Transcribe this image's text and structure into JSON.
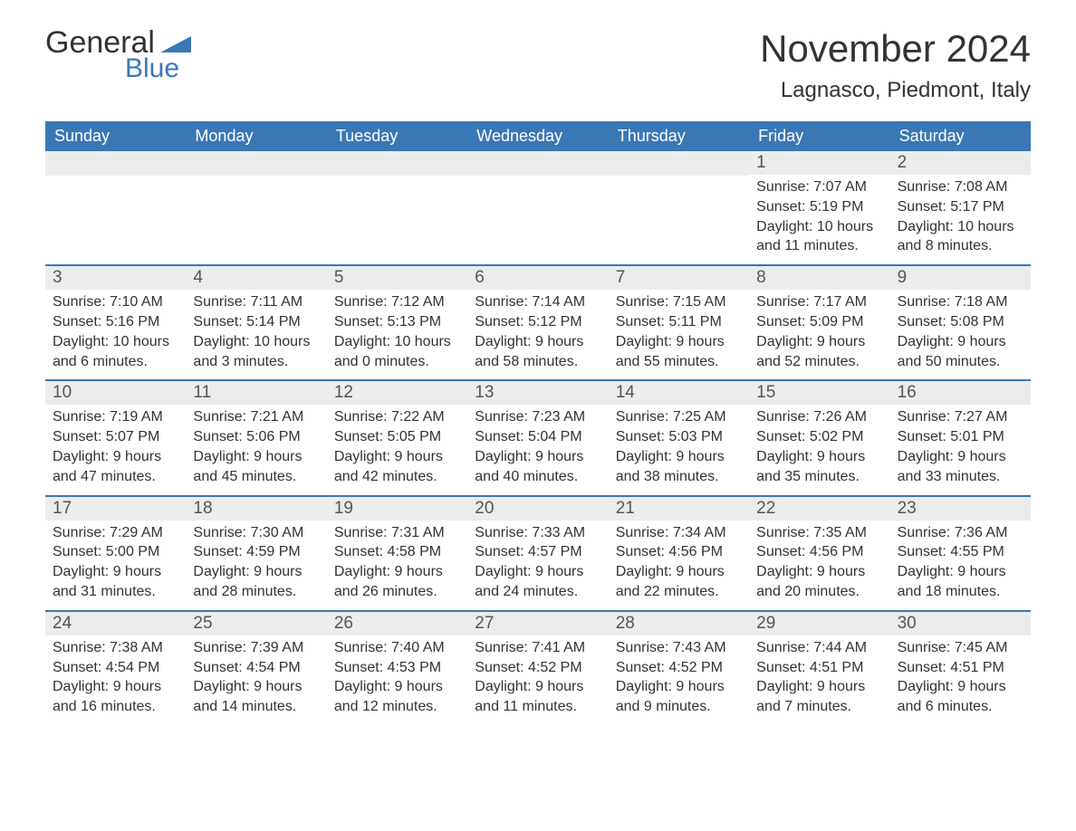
{
  "logo": {
    "text1": "General",
    "text2": "Blue",
    "tri_color": "#3a78b5"
  },
  "title": "November 2024",
  "location": "Lagnasco, Piedmont, Italy",
  "colors": {
    "header_bg": "#3a78b5",
    "header_text": "#ffffff",
    "daynum_bg": "#ececec",
    "border": "#3a78b5",
    "body_text": "#333333"
  },
  "fonts": {
    "title_size": 42,
    "location_size": 24,
    "dow_size": 18,
    "daynum_size": 19,
    "body_size": 16
  },
  "days_of_week": [
    "Sunday",
    "Monday",
    "Tuesday",
    "Wednesday",
    "Thursday",
    "Friday",
    "Saturday"
  ],
  "weeks": [
    [
      null,
      null,
      null,
      null,
      null,
      {
        "n": "1",
        "sunrise": "Sunrise: 7:07 AM",
        "sunset": "Sunset: 5:19 PM",
        "d1": "Daylight: 10 hours",
        "d2": "and 11 minutes."
      },
      {
        "n": "2",
        "sunrise": "Sunrise: 7:08 AM",
        "sunset": "Sunset: 5:17 PM",
        "d1": "Daylight: 10 hours",
        "d2": "and 8 minutes."
      }
    ],
    [
      {
        "n": "3",
        "sunrise": "Sunrise: 7:10 AM",
        "sunset": "Sunset: 5:16 PM",
        "d1": "Daylight: 10 hours",
        "d2": "and 6 minutes."
      },
      {
        "n": "4",
        "sunrise": "Sunrise: 7:11 AM",
        "sunset": "Sunset: 5:14 PM",
        "d1": "Daylight: 10 hours",
        "d2": "and 3 minutes."
      },
      {
        "n": "5",
        "sunrise": "Sunrise: 7:12 AM",
        "sunset": "Sunset: 5:13 PM",
        "d1": "Daylight: 10 hours",
        "d2": "and 0 minutes."
      },
      {
        "n": "6",
        "sunrise": "Sunrise: 7:14 AM",
        "sunset": "Sunset: 5:12 PM",
        "d1": "Daylight: 9 hours",
        "d2": "and 58 minutes."
      },
      {
        "n": "7",
        "sunrise": "Sunrise: 7:15 AM",
        "sunset": "Sunset: 5:11 PM",
        "d1": "Daylight: 9 hours",
        "d2": "and 55 minutes."
      },
      {
        "n": "8",
        "sunrise": "Sunrise: 7:17 AM",
        "sunset": "Sunset: 5:09 PM",
        "d1": "Daylight: 9 hours",
        "d2": "and 52 minutes."
      },
      {
        "n": "9",
        "sunrise": "Sunrise: 7:18 AM",
        "sunset": "Sunset: 5:08 PM",
        "d1": "Daylight: 9 hours",
        "d2": "and 50 minutes."
      }
    ],
    [
      {
        "n": "10",
        "sunrise": "Sunrise: 7:19 AM",
        "sunset": "Sunset: 5:07 PM",
        "d1": "Daylight: 9 hours",
        "d2": "and 47 minutes."
      },
      {
        "n": "11",
        "sunrise": "Sunrise: 7:21 AM",
        "sunset": "Sunset: 5:06 PM",
        "d1": "Daylight: 9 hours",
        "d2": "and 45 minutes."
      },
      {
        "n": "12",
        "sunrise": "Sunrise: 7:22 AM",
        "sunset": "Sunset: 5:05 PM",
        "d1": "Daylight: 9 hours",
        "d2": "and 42 minutes."
      },
      {
        "n": "13",
        "sunrise": "Sunrise: 7:23 AM",
        "sunset": "Sunset: 5:04 PM",
        "d1": "Daylight: 9 hours",
        "d2": "and 40 minutes."
      },
      {
        "n": "14",
        "sunrise": "Sunrise: 7:25 AM",
        "sunset": "Sunset: 5:03 PM",
        "d1": "Daylight: 9 hours",
        "d2": "and 38 minutes."
      },
      {
        "n": "15",
        "sunrise": "Sunrise: 7:26 AM",
        "sunset": "Sunset: 5:02 PM",
        "d1": "Daylight: 9 hours",
        "d2": "and 35 minutes."
      },
      {
        "n": "16",
        "sunrise": "Sunrise: 7:27 AM",
        "sunset": "Sunset: 5:01 PM",
        "d1": "Daylight: 9 hours",
        "d2": "and 33 minutes."
      }
    ],
    [
      {
        "n": "17",
        "sunrise": "Sunrise: 7:29 AM",
        "sunset": "Sunset: 5:00 PM",
        "d1": "Daylight: 9 hours",
        "d2": "and 31 minutes."
      },
      {
        "n": "18",
        "sunrise": "Sunrise: 7:30 AM",
        "sunset": "Sunset: 4:59 PM",
        "d1": "Daylight: 9 hours",
        "d2": "and 28 minutes."
      },
      {
        "n": "19",
        "sunrise": "Sunrise: 7:31 AM",
        "sunset": "Sunset: 4:58 PM",
        "d1": "Daylight: 9 hours",
        "d2": "and 26 minutes."
      },
      {
        "n": "20",
        "sunrise": "Sunrise: 7:33 AM",
        "sunset": "Sunset: 4:57 PM",
        "d1": "Daylight: 9 hours",
        "d2": "and 24 minutes."
      },
      {
        "n": "21",
        "sunrise": "Sunrise: 7:34 AM",
        "sunset": "Sunset: 4:56 PM",
        "d1": "Daylight: 9 hours",
        "d2": "and 22 minutes."
      },
      {
        "n": "22",
        "sunrise": "Sunrise: 7:35 AM",
        "sunset": "Sunset: 4:56 PM",
        "d1": "Daylight: 9 hours",
        "d2": "and 20 minutes."
      },
      {
        "n": "23",
        "sunrise": "Sunrise: 7:36 AM",
        "sunset": "Sunset: 4:55 PM",
        "d1": "Daylight: 9 hours",
        "d2": "and 18 minutes."
      }
    ],
    [
      {
        "n": "24",
        "sunrise": "Sunrise: 7:38 AM",
        "sunset": "Sunset: 4:54 PM",
        "d1": "Daylight: 9 hours",
        "d2": "and 16 minutes."
      },
      {
        "n": "25",
        "sunrise": "Sunrise: 7:39 AM",
        "sunset": "Sunset: 4:54 PM",
        "d1": "Daylight: 9 hours",
        "d2": "and 14 minutes."
      },
      {
        "n": "26",
        "sunrise": "Sunrise: 7:40 AM",
        "sunset": "Sunset: 4:53 PM",
        "d1": "Daylight: 9 hours",
        "d2": "and 12 minutes."
      },
      {
        "n": "27",
        "sunrise": "Sunrise: 7:41 AM",
        "sunset": "Sunset: 4:52 PM",
        "d1": "Daylight: 9 hours",
        "d2": "and 11 minutes."
      },
      {
        "n": "28",
        "sunrise": "Sunrise: 7:43 AM",
        "sunset": "Sunset: 4:52 PM",
        "d1": "Daylight: 9 hours",
        "d2": "and 9 minutes."
      },
      {
        "n": "29",
        "sunrise": "Sunrise: 7:44 AM",
        "sunset": "Sunset: 4:51 PM",
        "d1": "Daylight: 9 hours",
        "d2": "and 7 minutes."
      },
      {
        "n": "30",
        "sunrise": "Sunrise: 7:45 AM",
        "sunset": "Sunset: 4:51 PM",
        "d1": "Daylight: 9 hours",
        "d2": "and 6 minutes."
      }
    ]
  ]
}
